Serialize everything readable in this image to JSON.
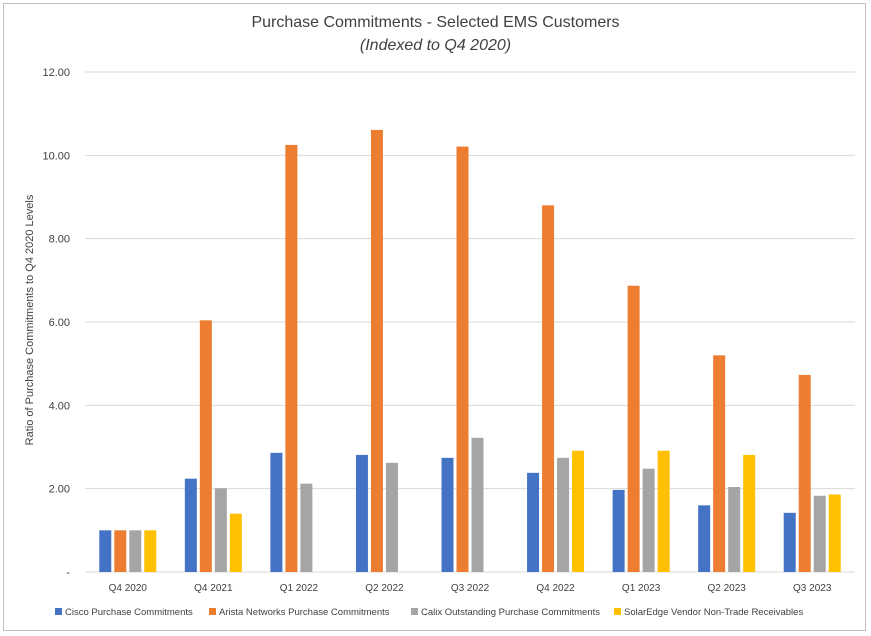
{
  "chart_data": {
    "type": "bar",
    "title": "Purchase Commitments - Selected EMS Customers",
    "subtitle": "(Indexed to Q4 2020)",
    "xlabel": "",
    "ylabel": "Ratio of Purchase Commitments to Q4 2020 Levels",
    "ylim": [
      0,
      12
    ],
    "yticks": [
      0,
      2,
      4,
      6,
      8,
      10,
      12
    ],
    "ytick_labels": [
      "-",
      "2.00",
      "4.00",
      "6.00",
      "8.00",
      "10.00",
      "12.00"
    ],
    "grid": true,
    "legend_position": "bottom",
    "categories": [
      "Q4 2020",
      "Q4 2021",
      "Q1 2022",
      "Q2 2022",
      "Q3 2022",
      "Q4 2022",
      "Q1 2023",
      "Q2 2023",
      "Q3 2023"
    ],
    "series": [
      {
        "name": "Cisco Purchase Commitments",
        "color": "#4472c4",
        "values": [
          1.0,
          2.24,
          2.86,
          2.81,
          2.74,
          2.38,
          1.97,
          1.6,
          1.42
        ]
      },
      {
        "name": "Arista Networks Purchase Commitments",
        "color": "#ed7d31",
        "values": [
          1.0,
          6.04,
          10.25,
          10.61,
          10.21,
          8.8,
          6.87,
          5.2,
          4.73
        ]
      },
      {
        "name": "Calix Outstanding Purchase Commitments",
        "color": "#a5a5a5",
        "values": [
          1.0,
          2.01,
          2.12,
          2.62,
          3.22,
          2.74,
          2.48,
          2.04,
          1.83
        ]
      },
      {
        "name": "SolarEdge Vendor Non-Trade Receivables",
        "color": "#ffc000",
        "values": [
          1.0,
          1.4,
          null,
          null,
          null,
          2.91,
          2.91,
          2.81,
          1.86
        ]
      }
    ]
  }
}
